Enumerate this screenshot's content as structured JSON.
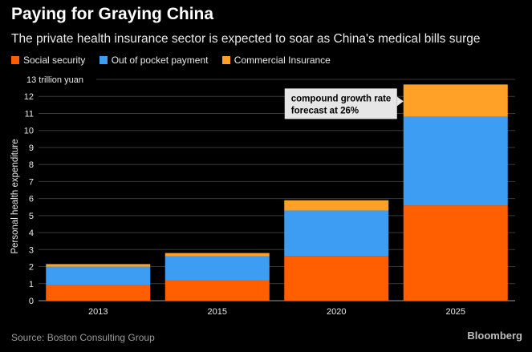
{
  "header": {
    "title": "Paying for Graying China",
    "subtitle": "The private health insurance sector is expected to soar as China's medical bills surge"
  },
  "footer": {
    "source": "Source: Boston Consulting Group",
    "brand": "Bloomberg"
  },
  "chart_data": {
    "type": "bar",
    "stacked": true,
    "title": "Paying for Graying China",
    "xlabel": "",
    "ylabel": "Personal health expenditure",
    "unit_label": "13 trillion yuan",
    "ylim": [
      0,
      13
    ],
    "yticks": [
      0,
      1,
      2,
      3,
      4,
      5,
      6,
      7,
      8,
      9,
      10,
      11,
      12
    ],
    "categories": [
      "2013",
      "2015",
      "2020",
      "2025"
    ],
    "series": [
      {
        "name": "Social security",
        "color": "#ff5f00",
        "values": [
          0.9,
          1.2,
          2.6,
          5.6
        ]
      },
      {
        "name": "Out of pocket payment",
        "color": "#3d9df2",
        "values": [
          1.1,
          1.4,
          2.7,
          5.2
        ]
      },
      {
        "name": "Commercial Insurance",
        "color": "#ffa126",
        "values": [
          0.15,
          0.2,
          0.6,
          1.9
        ]
      }
    ],
    "annotation": {
      "lines": [
        "compound growth rate",
        "forecast at 26%"
      ],
      "target": "2025"
    }
  }
}
